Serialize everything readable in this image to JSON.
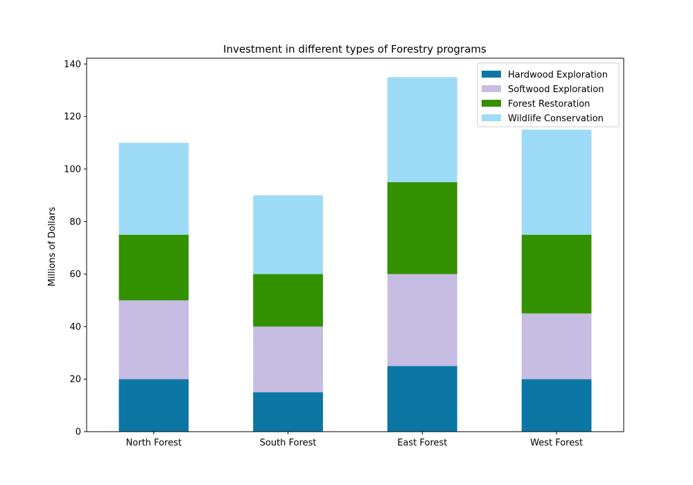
{
  "chart_data": {
    "type": "bar",
    "stacked": true,
    "title": "Investment in different types of Forestry programs",
    "xlabel": "",
    "ylabel": "Millions of Dollars",
    "categories": [
      "North Forest",
      "South Forest",
      "East Forest",
      "West Forest"
    ],
    "ylim": [
      0,
      140
    ],
    "yticks": [
      0,
      20,
      40,
      60,
      80,
      100,
      120,
      140
    ],
    "grid": false,
    "legend_position": "top-right",
    "series": [
      {
        "name": "Hardwood Exploration",
        "color": "#0c77a5",
        "values": [
          20,
          15,
          25,
          20
        ]
      },
      {
        "name": "Softwood Exploration",
        "color": "#c7bce2",
        "values": [
          30,
          25,
          35,
          25
        ]
      },
      {
        "name": "Forest Restoration",
        "color": "#339100",
        "values": [
          25,
          20,
          35,
          30
        ]
      },
      {
        "name": "Wildlife Conservation",
        "color": "#9edbf6",
        "values": [
          35,
          30,
          40,
          40
        ]
      }
    ]
  }
}
